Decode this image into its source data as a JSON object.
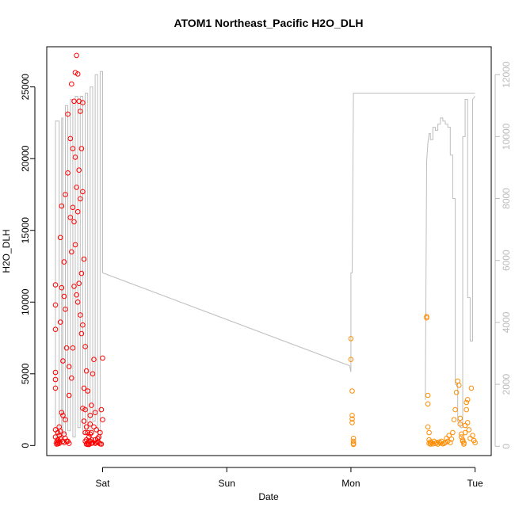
{
  "chart_data": {
    "type": "scatter",
    "title": "ATOM1 Northeast_Pacific H2O_DLH",
    "xlabel": "Date",
    "ylabel": "H2O_DLH",
    "x_ticks": [
      "Sat",
      "Sun",
      "Mon",
      "Tue"
    ],
    "x_tick_days": [
      1,
      2,
      3,
      4
    ],
    "xlim_days": [
      0.55,
      4.13
    ],
    "ylim": [
      -700,
      27800
    ],
    "y_ticks": [
      0,
      5000,
      10000,
      15000,
      20000,
      25000
    ],
    "right_axis": {
      "label": "",
      "ylim": [
        -300,
        12900
      ],
      "ticks": [
        0,
        2000,
        4000,
        6000,
        8000,
        10000,
        12000
      ],
      "color": "#bbbbbb"
    },
    "grid": false,
    "legend": "none",
    "colors": {
      "flight1": "#ff0000",
      "flight2": "#ff8c00",
      "altitude": "#bdbdbd"
    },
    "series": [
      {
        "kind": "points",
        "color_key": "flight1",
        "x": [
          0.62,
          0.62,
          0.62,
          0.62,
          0.62,
          0.62,
          0.62,
          0.62,
          0.63,
          0.63,
          0.64,
          0.64,
          0.64,
          0.64,
          0.65,
          0.65,
          0.65,
          0.65,
          0.66,
          0.66,
          0.66,
          0.66,
          0.67,
          0.67,
          0.67,
          0.68,
          0.68,
          0.68,
          0.69,
          0.69,
          0.69,
          0.69,
          0.7,
          0.7,
          0.7,
          0.7,
          0.71,
          0.71,
          0.72,
          0.72,
          0.72,
          0.73,
          0.73,
          0.73,
          0.74,
          0.74,
          0.75,
          0.75,
          0.75,
          0.76,
          0.76,
          0.76,
          0.77,
          0.77,
          0.77,
          0.78,
          0.78,
          0.78,
          0.79,
          0.79,
          0.79,
          0.8,
          0.8,
          0.8,
          0.81,
          0.81,
          0.81,
          0.82,
          0.82,
          0.82,
          0.83,
          0.83,
          0.83,
          0.84,
          0.84,
          0.84,
          0.84,
          0.85,
          0.85,
          0.85,
          0.86,
          0.86,
          0.86,
          0.86,
          0.87,
          0.87,
          0.87,
          0.87,
          0.88,
          0.88,
          0.88,
          0.88,
          0.89,
          0.89,
          0.89,
          0.89,
          0.9,
          0.9,
          0.9,
          0.9,
          0.91,
          0.91,
          0.91,
          0.91,
          0.92,
          0.92,
          0.93,
          0.93,
          0.94,
          0.94,
          0.94,
          0.95,
          0.95,
          0.96,
          0.96,
          0.97,
          0.97,
          0.98,
          0.98,
          0.99,
          0.99,
          1.0,
          1.0
        ],
        "y": [
          11200,
          9800,
          8100,
          5100,
          4600,
          4000,
          1100,
          600,
          250,
          100,
          900,
          400,
          200,
          120,
          1300,
          700,
          300,
          150,
          14500,
          8600,
          1000,
          500,
          16700,
          11000,
          2300,
          5900,
          2100,
          300,
          12800,
          10400,
          800,
          200,
          17500,
          9500,
          1800,
          500,
          6800,
          300,
          23100,
          19000,
          300,
          5500,
          3500,
          150,
          21400,
          15900,
          25200,
          13500,
          4700,
          20700,
          16600,
          6800,
          24000,
          15600,
          11100,
          26000,
          20100,
          14000,
          27200,
          18000,
          10500,
          25900,
          16300,
          10000,
          24000,
          19200,
          11300,
          23300,
          17200,
          9100,
          20700,
          12000,
          7800,
          23900,
          17700,
          8400,
          2600,
          13000,
          4000,
          1700,
          6900,
          2500,
          900,
          300,
          5200,
          1300,
          400,
          100,
          3800,
          900,
          200,
          80,
          600,
          300,
          150,
          70,
          2100,
          1500,
          800,
          300,
          2800,
          900,
          400,
          150,
          5000,
          200,
          6000,
          1300,
          2300,
          400,
          150,
          1100,
          200,
          500,
          250,
          600,
          200,
          900,
          120,
          2500,
          100,
          6100,
          1800
        ],
        "note": "values read approximately from the figure"
      },
      {
        "kind": "points",
        "color_key": "flight2",
        "x": [
          3.0,
          3.0,
          3.01,
          3.01,
          3.01,
          3.01,
          3.02,
          3.02,
          3.02,
          3.02,
          3.61,
          3.61,
          3.62,
          3.62,
          3.62,
          3.63,
          3.63,
          3.63,
          3.64,
          3.64,
          3.65,
          3.66,
          3.67,
          3.68,
          3.69,
          3.7,
          3.71,
          3.72,
          3.73,
          3.74,
          3.75,
          3.76,
          3.77,
          3.78,
          3.79,
          3.8,
          3.81,
          3.82,
          3.83,
          3.84,
          3.85,
          3.86,
          3.87,
          3.88,
          3.88,
          3.89,
          3.89,
          3.9,
          3.9,
          3.91,
          3.91,
          3.92,
          3.92,
          3.93,
          3.93,
          3.94,
          3.94,
          3.95,
          3.96,
          3.97,
          3.98,
          3.99,
          4.0
        ],
        "y": [
          7450,
          6000,
          3800,
          2100,
          1850,
          1600,
          500,
          300,
          150,
          80,
          9000,
          8900,
          3500,
          2900,
          1300,
          900,
          400,
          150,
          250,
          100,
          200,
          120,
          300,
          150,
          200,
          100,
          250,
          180,
          300,
          120,
          150,
          200,
          500,
          300,
          700,
          200,
          450,
          900,
          1800,
          2500,
          3700,
          4500,
          4200,
          1900,
          1500,
          800,
          600,
          400,
          300,
          200,
          100,
          1400,
          900,
          3000,
          2500,
          3200,
          1600,
          1100,
          500,
          4000,
          700,
          350,
          200
        ],
        "note": "values read approximately from the figure"
      },
      {
        "kind": "line",
        "axis": "right",
        "color_key": "altitude",
        "x": [
          0.6,
          0.62,
          0.62,
          0.65,
          0.65,
          0.67,
          0.67,
          0.68,
          0.68,
          0.7,
          0.7,
          0.72,
          0.72,
          0.74,
          0.74,
          0.76,
          0.76,
          0.78,
          0.78,
          0.8,
          0.8,
          0.82,
          0.82,
          0.84,
          0.84,
          0.86,
          0.86,
          0.88,
          0.88,
          0.9,
          0.9,
          0.92,
          0.92,
          0.94,
          0.94,
          0.96,
          0.96,
          0.98,
          0.98,
          1.0,
          1.0,
          2.99,
          3.0,
          3.0,
          3.01,
          3.02,
          3.03,
          3.04,
          3.7,
          3.72,
          3.73,
          3.74,
          3.74,
          3.75,
          3.76,
          3.77,
          3.78,
          3.79,
          3.8,
          3.82,
          3.82,
          3.84,
          3.85,
          3.86,
          3.88,
          3.88,
          3.89,
          3.9,
          3.92,
          3.93,
          3.94,
          3.95,
          3.96,
          3.97,
          3.98,
          4.0
        ],
        "y": [
          100,
          100,
          10500,
          10500,
          200,
          200,
          10600,
          10600,
          400,
          400,
          11000,
          11000,
          500,
          500,
          11200,
          11200,
          300,
          300,
          11300,
          11300,
          600,
          600,
          11300,
          11300,
          400,
          400,
          11400,
          11400,
          500,
          500,
          11600,
          11600,
          800,
          800,
          12000,
          12000,
          200,
          200,
          12100,
          12100,
          5600,
          2600,
          2400,
          5600,
          5600,
          11400,
          11400,
          11400,
          11400,
          11400,
          11400,
          11400,
          11400,
          11400,
          11400,
          11400,
          11400,
          11400,
          11400,
          11400,
          11400,
          11400,
          11400,
          11400,
          11400,
          11400,
          11400,
          11400,
          11400,
          11400,
          11400,
          11400,
          11400,
          11400,
          11400,
          11400
        ],
        "note": "values read approximately from the figure; points for the second flight are listed in profile_2"
      }
    ],
    "profile_2": {
      "x": [
        3.6,
        3.6,
        3.61,
        3.62,
        3.63,
        3.64,
        3.64,
        3.66,
        3.66,
        3.68,
        3.68,
        3.7,
        3.7,
        3.72,
        3.72,
        3.74,
        3.74,
        3.76,
        3.76,
        3.78,
        3.78,
        3.8,
        3.8,
        3.82,
        3.82,
        3.84,
        3.84,
        3.86,
        3.86,
        3.88,
        3.88,
        3.9,
        3.9,
        3.92,
        3.92,
        3.94,
        3.94,
        3.96,
        3.96,
        3.98,
        3.98,
        4.0
      ],
      "y": [
        1500,
        1800,
        9200,
        9800,
        10100,
        10100,
        9900,
        9900,
        10300,
        10300,
        10200,
        10200,
        10400,
        10400,
        10600,
        10600,
        10500,
        10500,
        10400,
        10400,
        10300,
        10300,
        9400,
        9400,
        8000,
        8000,
        2000,
        2000,
        800,
        800,
        600,
        600,
        10000,
        10000,
        11200,
        11200,
        4800,
        4800,
        3400,
        3400,
        11200,
        11300
      ]
    }
  }
}
